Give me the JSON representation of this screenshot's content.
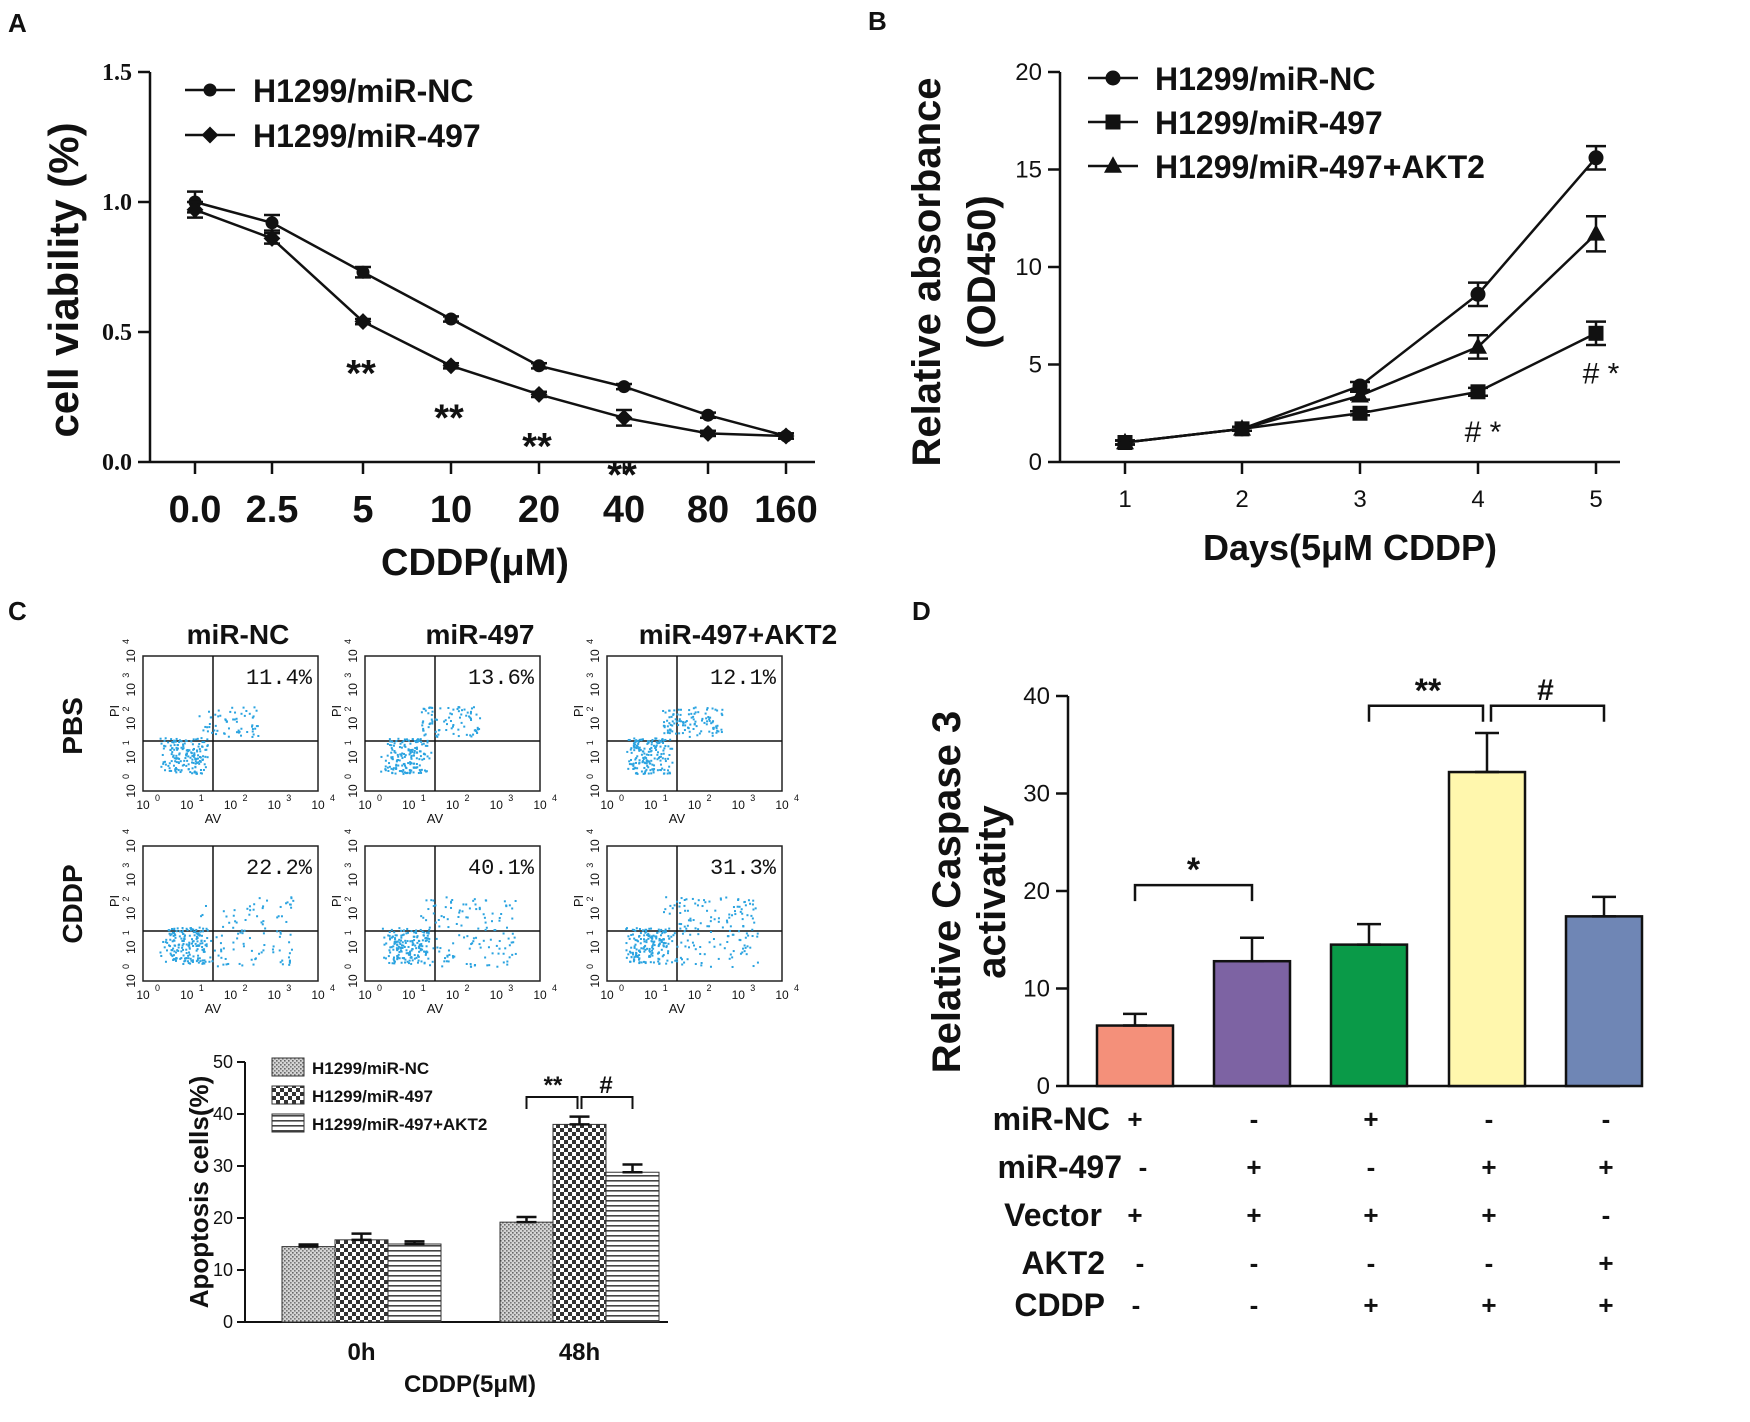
{
  "chart_data": [
    {
      "panel": "A",
      "type": "line",
      "xlabel": "CDDP(μM)",
      "ylabel": "cell viability (%)",
      "categories": [
        "0.0",
        "2.5",
        "5",
        "10",
        "20",
        "40",
        "80",
        "160"
      ],
      "ylim": [
        0,
        1.5
      ],
      "yticks": [
        "0.0",
        "0.5",
        "1.0",
        "1.5"
      ],
      "series": [
        {
          "name": "H1299/miR-NC",
          "marker": "circle",
          "values": [
            1.0,
            0.92,
            0.73,
            0.55,
            0.37,
            0.29,
            0.18,
            0.1
          ],
          "errors": [
            0.04,
            0.03,
            0.02,
            0.01,
            0.01,
            0.01,
            0.01,
            0.01
          ]
        },
        {
          "name": "H1299/miR-497",
          "marker": "diamond",
          "values": [
            0.97,
            0.86,
            0.54,
            0.37,
            0.26,
            0.17,
            0.11,
            0.1
          ],
          "errors": [
            0.03,
            0.02,
            0.01,
            0.01,
            0.01,
            0.03,
            0.01,
            0.01
          ]
        }
      ],
      "annotations": [
        {
          "category": "5",
          "text": "**"
        },
        {
          "category": "10",
          "text": "**"
        },
        {
          "category": "20",
          "text": "**"
        },
        {
          "category": "40",
          "text": "**"
        }
      ]
    },
    {
      "panel": "B",
      "type": "line",
      "xlabel": "Days(5μM CDDP)",
      "ylabel": "Relative absorbance",
      "ylabel2": "(OD450)",
      "categories": [
        "1",
        "2",
        "3",
        "4",
        "5"
      ],
      "ylim": [
        0,
        20
      ],
      "yticks": [
        "0",
        "5",
        "10",
        "15",
        "20"
      ],
      "series": [
        {
          "name": "H1299/miR-NC",
          "marker": "circle",
          "values": [
            1.0,
            1.7,
            3.9,
            8.6,
            15.6
          ],
          "errors": [
            0.1,
            0.1,
            0.2,
            0.6,
            0.6
          ]
        },
        {
          "name": "H1299/miR-497",
          "marker": "square",
          "values": [
            1.0,
            1.7,
            2.5,
            3.6,
            6.6
          ],
          "errors": [
            0.1,
            0.1,
            0.1,
            0.2,
            0.6
          ]
        },
        {
          "name": "H1299/miR-497+AKT2",
          "marker": "triangle",
          "values": [
            1.0,
            1.7,
            3.4,
            5.9,
            11.7
          ],
          "errors": [
            0.1,
            0.1,
            0.2,
            0.6,
            0.9
          ]
        }
      ],
      "annotations": [
        {
          "category": "4",
          "text": "# *"
        },
        {
          "category": "5",
          "text": "# *"
        }
      ]
    },
    {
      "panel": "C",
      "type": "bar",
      "ylabel": "Apoptosis cells(%)",
      "xlabel": "CDDP(5μM)",
      "categories": [
        "0h",
        "48h"
      ],
      "ylim": [
        0,
        50
      ],
      "yticks": [
        "0",
        "10",
        "20",
        "30",
        "40",
        "50"
      ],
      "series": [
        {
          "name": "H1299/miR-NC",
          "values": [
            14.5,
            19.2
          ],
          "errors": [
            0.4,
            1.0
          ]
        },
        {
          "name": "H1299/miR-497",
          "values": [
            15.8,
            38.0
          ],
          "errors": [
            1.2,
            1.5
          ]
        },
        {
          "name": "H1299/miR-497+AKT2",
          "values": [
            15.0,
            28.8
          ],
          "errors": [
            0.5,
            1.5
          ]
        }
      ],
      "annotations": [
        "**",
        "#"
      ],
      "flow": {
        "columns": [
          "miR-NC",
          "miR-497",
          "miR-497+AKT2"
        ],
        "rows": [
          "PBS",
          "CDDP"
        ],
        "percents": [
          [
            "11.4%",
            "13.6%",
            "12.1%"
          ],
          [
            "22.2%",
            "40.1%",
            "31.3%"
          ]
        ],
        "xaxis": "AV",
        "yaxis": "PI",
        "tick_base": "10",
        "tick_exps": [
          "0",
          "1",
          "2",
          "3",
          "4"
        ]
      }
    },
    {
      "panel": "D",
      "type": "bar",
      "ylabel": "Relative Caspase 3",
      "ylabel2": "activatity",
      "ylim": [
        0,
        40
      ],
      "yticks": [
        "0",
        "10",
        "20",
        "30",
        "40"
      ],
      "values": [
        6.2,
        12.8,
        14.5,
        32.2,
        17.4
      ],
      "errors": [
        1.2,
        2.4,
        2.1,
        4.0,
        2.0
      ],
      "colors": [
        "#f4907a",
        "#7d63a3",
        "#0a9a48",
        "#fff7ad",
        "#6f86b5"
      ],
      "annotations": [
        "*",
        "**",
        "#"
      ],
      "treatment_rows": [
        {
          "label": "miR-NC",
          "signs": [
            "+",
            "-",
            "+",
            "-",
            "-"
          ]
        },
        {
          "label": "miR-497",
          "signs": [
            "-",
            "+",
            "-",
            "+",
            "+"
          ]
        },
        {
          "label": "Vector",
          "signs": [
            "+",
            "+",
            "+",
            "+",
            "-"
          ]
        },
        {
          "label": "AKT2",
          "signs": [
            "-",
            "-",
            "-",
            "-",
            "+"
          ]
        },
        {
          "label": "CDDP",
          "signs": [
            "-",
            "-",
            "+",
            "+",
            "+"
          ]
        }
      ]
    }
  ],
  "panel_labels": [
    "A",
    "B",
    "C",
    "D"
  ]
}
